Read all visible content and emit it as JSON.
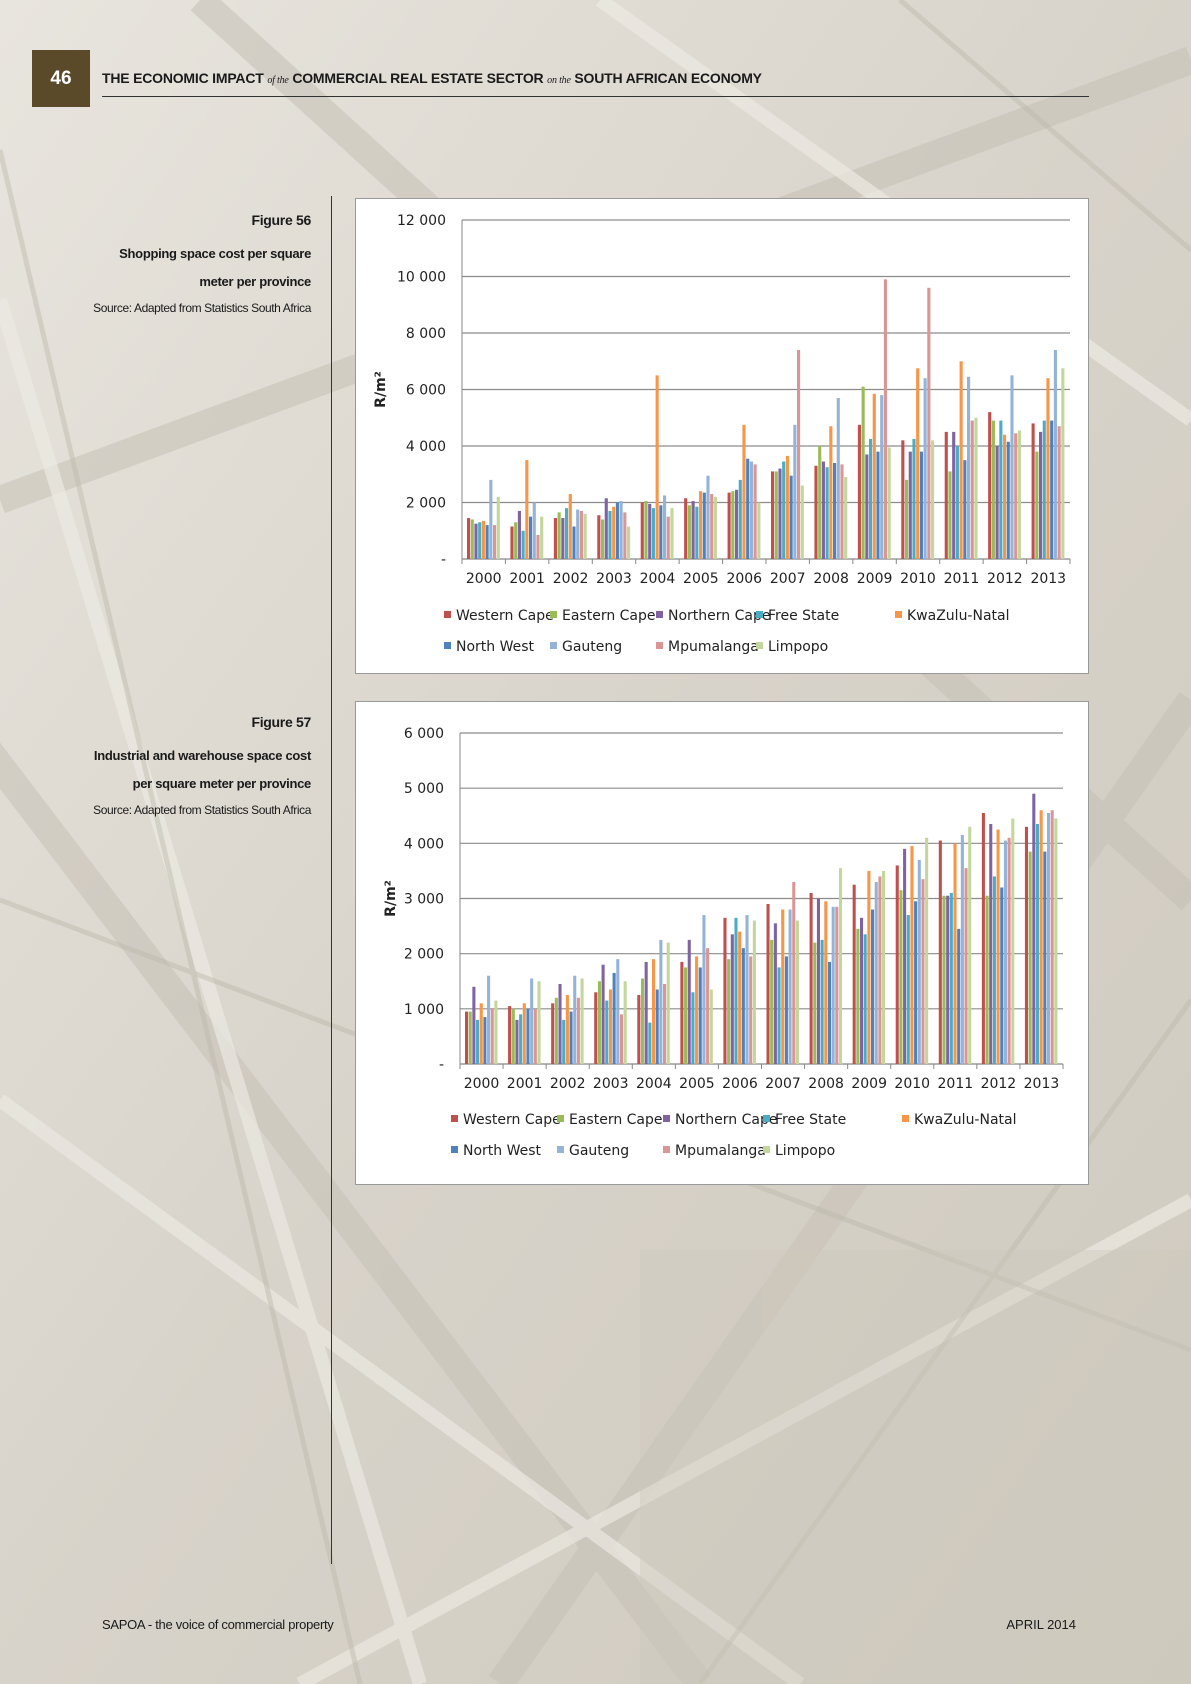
{
  "header": {
    "page_number": "46",
    "title_part1": "THE ECONOMIC IMPACT",
    "title_conn1": "of the",
    "title_part2": "COMMERCIAL REAL ESTATE SECTOR",
    "title_conn2": "on the",
    "title_part3": "SOUTH AFRICAN ECONOMY"
  },
  "figure56": {
    "number": "Figure 56",
    "title_line1": "Shopping space cost per square",
    "title_line2": "meter per province",
    "source": "Source: Adapted from Statistics South Africa"
  },
  "figure57": {
    "number": "Figure 57",
    "title_line1": "Industrial and warehouse space cost",
    "title_line2": "per square meter per province",
    "source": "Source: Adapted from Statistics South Africa"
  },
  "footer": {
    "left": "SAPOA - the voice of commercial property",
    "right": "APRIL 2014"
  },
  "chart_data": [
    {
      "type": "bar",
      "ylabel": "R/m²",
      "ylim": [
        0,
        12000
      ],
      "yticks": [
        0,
        2000,
        4000,
        6000,
        8000,
        10000,
        12000
      ],
      "ytick_labels": [
        "-",
        "2 000",
        "4 000",
        "6 000",
        "8 000",
        "10 000",
        "12 000"
      ],
      "gridlines": true,
      "legend_position": "bottom",
      "categories": [
        "2000",
        "2001",
        "2002",
        "2003",
        "2004",
        "2005",
        "2006",
        "2007",
        "2008",
        "2009",
        "2010",
        "2011",
        "2012",
        "2013"
      ],
      "series": [
        {
          "name": "Western Cape",
          "color": "#C0504D",
          "values": [
            1450,
            1150,
            1450,
            1550,
            2000,
            2150,
            2350,
            3100,
            3300,
            4750,
            4200,
            4500,
            5200,
            4800
          ]
        },
        {
          "name": "Eastern Cape",
          "color": "#9BBB59",
          "values": [
            1400,
            1300,
            1650,
            1400,
            2050,
            1900,
            2400,
            3100,
            4000,
            6100,
            2800,
            3100,
            4900,
            3800
          ]
        },
        {
          "name": "Northern Cape",
          "color": "#8064A2",
          "values": [
            1250,
            1700,
            1450,
            2150,
            1950,
            2050,
            2450,
            3200,
            3450,
            3700,
            3800,
            4500,
            4000,
            4500
          ]
        },
        {
          "name": "Free State",
          "color": "#4BACC6",
          "values": [
            1300,
            1000,
            1800,
            1700,
            1800,
            1850,
            2800,
            3450,
            3250,
            4250,
            4250,
            4000,
            4900,
            4900
          ]
        },
        {
          "name": "KwaZulu-Natal",
          "color": "#F79646",
          "values": [
            1350,
            3500,
            2300,
            1850,
            6500,
            2400,
            4750,
            3650,
            4700,
            5850,
            6750,
            7000,
            4400,
            6400
          ]
        },
        {
          "name": "North West",
          "color": "#4F81BD",
          "values": [
            1200,
            1500,
            1150,
            2000,
            1900,
            2350,
            3550,
            2950,
            3400,
            3800,
            3800,
            3500,
            4150,
            4900
          ]
        },
        {
          "name": "Gauteng",
          "color": "#95B3D7",
          "values": [
            2800,
            2000,
            1750,
            2050,
            2250,
            2950,
            3450,
            4750,
            5700,
            5800,
            6400,
            6450,
            6500,
            7400
          ]
        },
        {
          "name": "Mpumalanga",
          "color": "#D99694",
          "values": [
            1200,
            850,
            1700,
            1650,
            1500,
            2300,
            3350,
            7400,
            3350,
            9900,
            9600,
            4900,
            4450,
            4700
          ]
        },
        {
          "name": "Limpopo",
          "color": "#C3D69B",
          "values": [
            2200,
            1500,
            1600,
            1150,
            1800,
            2200,
            2000,
            2600,
            2900,
            3950,
            4200,
            5000,
            4550,
            6750
          ]
        }
      ]
    },
    {
      "type": "bar",
      "ylabel": "R/m²",
      "ylim": [
        0,
        6000
      ],
      "yticks": [
        0,
        1000,
        2000,
        3000,
        4000,
        5000,
        6000
      ],
      "ytick_labels": [
        "-",
        "1 000",
        "2 000",
        "3 000",
        "4 000",
        "5 000",
        "6 000"
      ],
      "gridlines": true,
      "legend_position": "bottom",
      "categories": [
        "2000",
        "2001",
        "2002",
        "2003",
        "2004",
        "2005",
        "2006",
        "2007",
        "2008",
        "2009",
        "2010",
        "2011",
        "2012",
        "2013"
      ],
      "series": [
        {
          "name": "Western Cape",
          "color": "#C0504D",
          "values": [
            950,
            1050,
            1100,
            1300,
            1250,
            1850,
            2650,
            2900,
            3100,
            3250,
            3600,
            4050,
            4550,
            4300
          ]
        },
        {
          "name": "Eastern Cape",
          "color": "#9BBB59",
          "values": [
            950,
            1000,
            1200,
            1500,
            1550,
            1750,
            1900,
            2250,
            2200,
            2450,
            3150,
            3050,
            3050,
            3850
          ]
        },
        {
          "name": "Northern Cape",
          "color": "#8064A2",
          "values": [
            1400,
            800,
            1450,
            1800,
            1850,
            2250,
            2350,
            2550,
            3000,
            2650,
            3900,
            3050,
            4350,
            4900
          ]
        },
        {
          "name": "Free State",
          "color": "#4BACC6",
          "values": [
            800,
            900,
            800,
            1150,
            750,
            1300,
            2650,
            1750,
            2250,
            2350,
            2700,
            3100,
            3400,
            4350
          ]
        },
        {
          "name": "KwaZulu-Natal",
          "color": "#F79646",
          "values": [
            1100,
            1100,
            1250,
            1350,
            1900,
            1950,
            2400,
            2800,
            2950,
            3500,
            3950,
            4000,
            4250,
            4600
          ]
        },
        {
          "name": "North West",
          "color": "#4F81BD",
          "values": [
            850,
            1000,
            950,
            1650,
            1350,
            1750,
            2100,
            1950,
            1850,
            2800,
            2950,
            2450,
            3200,
            3850
          ]
        },
        {
          "name": "Gauteng",
          "color": "#95B3D7",
          "values": [
            1600,
            1550,
            1600,
            1900,
            2250,
            2700,
            2700,
            2800,
            2850,
            3300,
            3700,
            4150,
            4050,
            4550
          ]
        },
        {
          "name": "Mpumalanga",
          "color": "#D99694",
          "values": [
            1000,
            1000,
            1200,
            900,
            1450,
            2100,
            1950,
            3300,
            2850,
            3400,
            3350,
            3550,
            4100,
            4600
          ]
        },
        {
          "name": "Limpopo",
          "color": "#C3D69B",
          "values": [
            1150,
            1500,
            1550,
            1500,
            2200,
            1350,
            2600,
            2600,
            3550,
            3500,
            4100,
            4300,
            4450,
            4450
          ]
        }
      ]
    }
  ]
}
